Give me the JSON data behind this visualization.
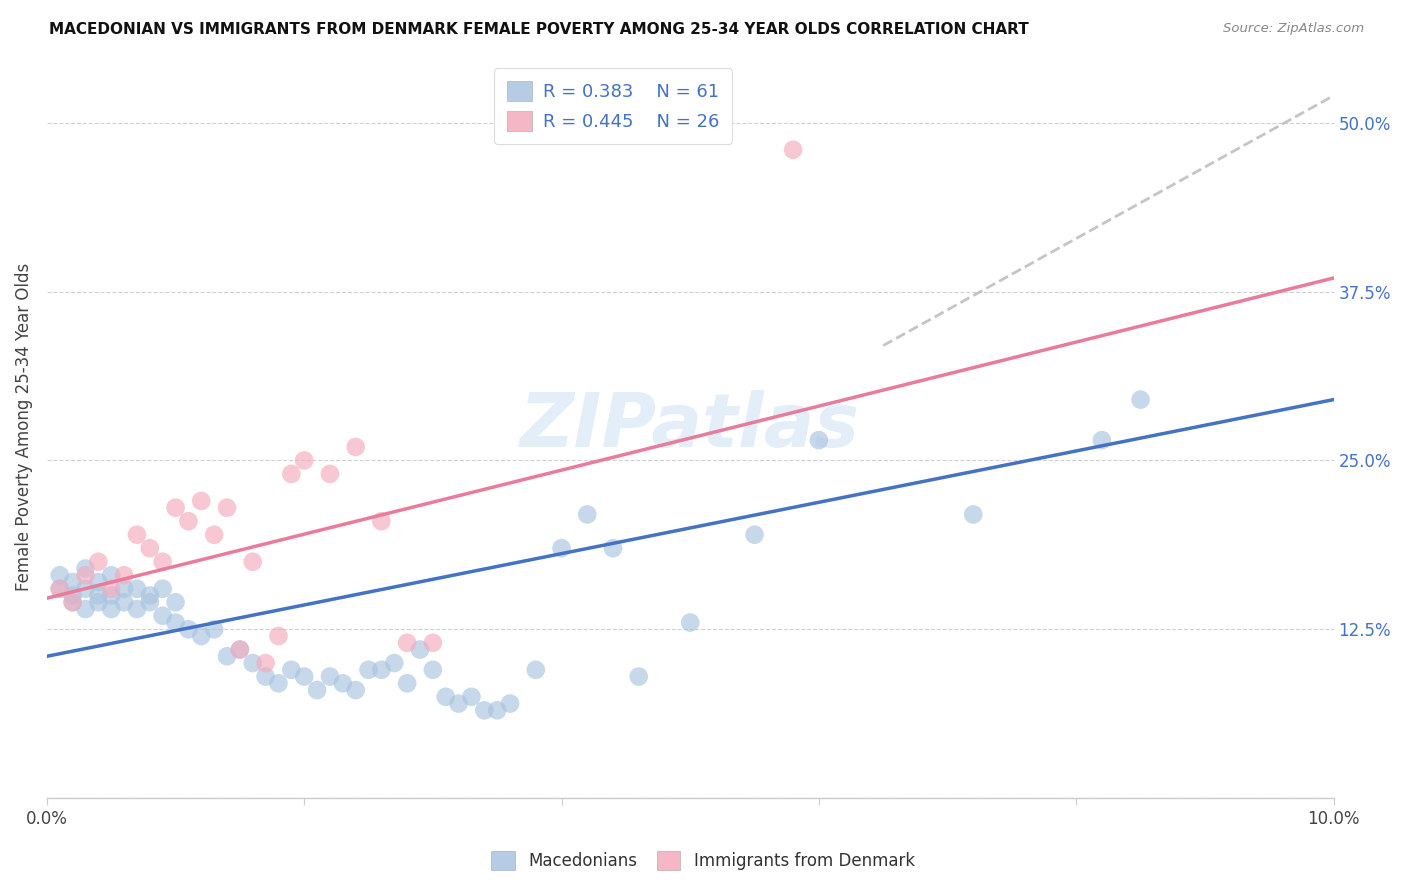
{
  "title": "MACEDONIAN VS IMMIGRANTS FROM DENMARK FEMALE POVERTY AMONG 25-34 YEAR OLDS CORRELATION CHART",
  "source": "Source: ZipAtlas.com",
  "ylabel": "Female Poverty Among 25-34 Year Olds",
  "xlim": [
    0.0,
    0.1
  ],
  "ylim": [
    0.0,
    0.55
  ],
  "yticks": [
    0.0,
    0.125,
    0.25,
    0.375,
    0.5
  ],
  "ytick_labels": [
    "",
    "12.5%",
    "25.0%",
    "37.5%",
    "50.0%"
  ],
  "xticks": [
    0.0,
    0.02,
    0.04,
    0.06,
    0.08,
    0.1
  ],
  "xtick_labels": [
    "0.0%",
    "",
    "",
    "",
    "",
    "10.0%"
  ],
  "blue_color": "#A8C4E0",
  "pink_color": "#F4AABC",
  "blue_line_color": "#4472C4",
  "pink_line_color": "#E97B9B",
  "dashed_line_color": "#BBBBBB",
  "watermark": "ZIPatlas",
  "mac_x": [
    0.001,
    0.001,
    0.002,
    0.002,
    0.002,
    0.003,
    0.003,
    0.003,
    0.004,
    0.004,
    0.004,
    0.005,
    0.005,
    0.005,
    0.006,
    0.006,
    0.007,
    0.007,
    0.008,
    0.008,
    0.009,
    0.009,
    0.01,
    0.01,
    0.011,
    0.012,
    0.013,
    0.014,
    0.015,
    0.016,
    0.017,
    0.018,
    0.019,
    0.02,
    0.021,
    0.022,
    0.023,
    0.024,
    0.025,
    0.026,
    0.027,
    0.028,
    0.029,
    0.03,
    0.031,
    0.032,
    0.033,
    0.034,
    0.035,
    0.036,
    0.038,
    0.04,
    0.042,
    0.044,
    0.046,
    0.05,
    0.055,
    0.06,
    0.072,
    0.082,
    0.085
  ],
  "mac_y": [
    0.155,
    0.165,
    0.15,
    0.145,
    0.16,
    0.14,
    0.155,
    0.17,
    0.15,
    0.145,
    0.16,
    0.14,
    0.15,
    0.165,
    0.145,
    0.155,
    0.14,
    0.155,
    0.15,
    0.145,
    0.135,
    0.155,
    0.13,
    0.145,
    0.125,
    0.12,
    0.125,
    0.105,
    0.11,
    0.1,
    0.09,
    0.085,
    0.095,
    0.09,
    0.08,
    0.09,
    0.085,
    0.08,
    0.095,
    0.095,
    0.1,
    0.085,
    0.11,
    0.095,
    0.075,
    0.07,
    0.075,
    0.065,
    0.065,
    0.07,
    0.095,
    0.185,
    0.21,
    0.185,
    0.09,
    0.13,
    0.195,
    0.265,
    0.21,
    0.265,
    0.295
  ],
  "den_x": [
    0.001,
    0.002,
    0.003,
    0.004,
    0.005,
    0.006,
    0.007,
    0.008,
    0.009,
    0.01,
    0.011,
    0.012,
    0.013,
    0.014,
    0.015,
    0.016,
    0.017,
    0.018,
    0.019,
    0.02,
    0.022,
    0.024,
    0.026,
    0.028,
    0.03,
    0.058
  ],
  "den_y": [
    0.155,
    0.145,
    0.165,
    0.175,
    0.155,
    0.165,
    0.195,
    0.185,
    0.175,
    0.215,
    0.205,
    0.22,
    0.195,
    0.215,
    0.11,
    0.175,
    0.1,
    0.12,
    0.24,
    0.25,
    0.24,
    0.26,
    0.205,
    0.115,
    0.115,
    0.48
  ],
  "blue_line_x": [
    0.0,
    0.1
  ],
  "blue_line_y": [
    0.105,
    0.295
  ],
  "pink_line_x": [
    0.0,
    0.1
  ],
  "pink_line_y": [
    0.148,
    0.385
  ],
  "dash_line_x": [
    0.065,
    0.1
  ],
  "dash_line_y": [
    0.335,
    0.52
  ]
}
